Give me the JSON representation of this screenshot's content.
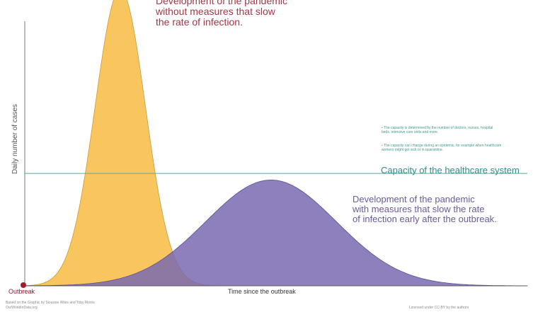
{
  "texts": {
    "red_curve_label": [
      "Development of the pandemic",
      "without measures that slow",
      "the rate of infection."
    ],
    "purple_curve_label": [
      "Development of the pandemic",
      "with measures that slow the rate",
      "of infection early after the outbreak."
    ],
    "capacity_label": "Capacity of the healthcare system",
    "capacity_note_1": "• The capacity is determined by the number of doctors, nurses, hospital beds, intensive care units and more.",
    "capacity_note_2": "• The capacity can change during an epidemic, for example when healthcare workers might get sick or in quarantine.",
    "y_axis_label": "Daily number of cases",
    "x_axis_label": "Time since the outbreak",
    "origin_label": "Outbreak",
    "credit_line_1": "Based on the Graphic by Siouxsie Wiles and Toby Morris",
    "credit_line_2": "OurWorldInData.org",
    "credit_line_3": "Licensed under CC-BY by the authors"
  },
  "colors": {
    "unmitigated_fill": "#f9c55f",
    "mitigated_fill": "#7a6ab0",
    "capacity_line": "#5aa8a4",
    "axis": "#555555",
    "origin_dot": "#a01a2c"
  },
  "curves": {
    "unmitigated": {
      "peak_time": 0.19,
      "spread": 0.05,
      "peak_height": 1.12
    },
    "mitigated": {
      "peak_time": 0.49,
      "spread": 0.13,
      "peak_height": 0.4
    },
    "capacity_level": 0.425
  }
}
